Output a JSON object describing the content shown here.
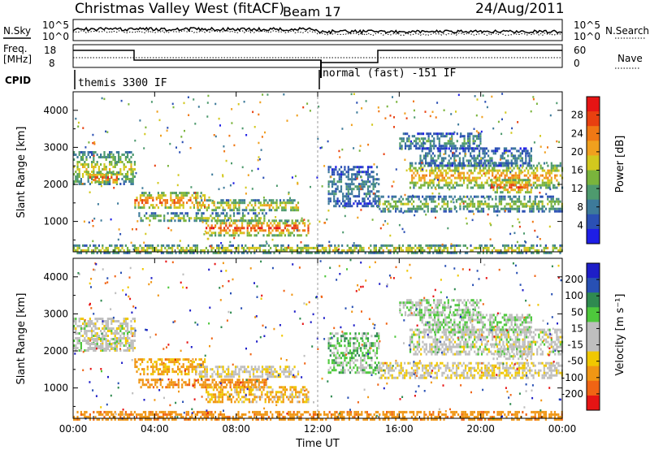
{
  "header": {
    "title": "Christmas Valley West (fitACF)",
    "beam": "Beam 17",
    "date": "24/Aug/2011"
  },
  "noise_panel": {
    "left_label": "N.Sky",
    "right_label": "N.Search",
    "left_ticks": [
      "10^5",
      "10^0"
    ],
    "right_ticks": [
      "10^5",
      "10^0"
    ]
  },
  "freq_panel": {
    "left_label_line1": "Freq.",
    "left_label_line2": "[MHz]",
    "right_label": "Nave",
    "left_ticks": [
      "18",
      "8"
    ],
    "right_ticks": [
      "60",
      "0"
    ]
  },
  "cpid_panel": {
    "label": "CPID",
    "modes": [
      {
        "text": "themis 3300 IF",
        "start_hour": 0
      },
      {
        "text": "normal (fast) -151 IF",
        "start_hour": 12
      }
    ]
  },
  "power_panel": {
    "ylabel": "Slant Range [km]",
    "colorbar_label": "Power [dB]",
    "colorbar_ticks": [
      "28",
      "24",
      "20",
      "16",
      "12",
      "8",
      "4"
    ]
  },
  "velocity_panel": {
    "ylabel": "Slant Range [km]",
    "colorbar_label": "Velocity [m s⁻¹]",
    "colorbar_ticks": [
      "200",
      "100",
      "50",
      "15",
      "-15",
      "-50",
      "-100",
      "-200"
    ]
  },
  "xaxis": {
    "label": "Time UT",
    "ticks": [
      "00:00",
      "04:00",
      "08:00",
      "12:00",
      "16:00",
      "20:00",
      "00:00"
    ]
  },
  "chart_data": {
    "type": "heatmap",
    "title": "Christmas Valley West (fitACF)",
    "xlabel": "Time UT",
    "ylabel": "Slant Range [km]",
    "x_range_hours": [
      0,
      24
    ],
    "y_range_km": [
      180,
      4500
    ],
    "y_ticks_km": [
      1000,
      2000,
      3000,
      4000
    ],
    "power_colorbar": {
      "colors": [
        "#1e1ee6",
        "#2b50b4",
        "#3d7a9a",
        "#4e9a6e",
        "#7ab43c",
        "#d2c81e",
        "#f0a01e",
        "#f07814",
        "#e84010",
        "#e61414"
      ]
    },
    "velocity_colorbar": {
      "colors": [
        "#1e1ec8",
        "#2850b4",
        "#2f8a50",
        "#4ec83c",
        "#bebebe",
        "#bebebe",
        "#f0c800",
        "#f09614",
        "#f06414",
        "#e61414"
      ]
    },
    "echo_bands": [
      {
        "t0": 0.0,
        "t1": 3.0,
        "r0": 2000,
        "r1": 2900,
        "power": 18,
        "velocity": 0
      },
      {
        "t0": 0.7,
        "t1": 2.2,
        "r0": 2050,
        "r1": 2350,
        "power": 28,
        "velocity": 0
      },
      {
        "t0": 3.0,
        "t1": 6.5,
        "r0": 1350,
        "r1": 1800,
        "power": 26,
        "velocity": -40
      },
      {
        "t0": 3.2,
        "t1": 9.5,
        "r0": 1000,
        "r1": 1250,
        "power": 16,
        "velocity": -60
      },
      {
        "t0": 6.5,
        "t1": 11.5,
        "r0": 650,
        "r1": 1050,
        "power": 28,
        "velocity": -30
      },
      {
        "t0": 6.0,
        "t1": 11.0,
        "r0": 1300,
        "r1": 1600,
        "power": 20,
        "velocity": -10
      },
      {
        "t0": 0.0,
        "t1": 24.0,
        "r0": 180,
        "r1": 380,
        "power": 20,
        "velocity": -60
      },
      {
        "t0": 12.5,
        "t1": 15.0,
        "r0": 1400,
        "r1": 2500,
        "power": 10,
        "velocity": 20
      },
      {
        "t0": 15.0,
        "t1": 24.0,
        "r0": 1300,
        "r1": 1700,
        "power": 16,
        "velocity": -10
      },
      {
        "t0": 16.5,
        "t1": 24.0,
        "r0": 1900,
        "r1": 2600,
        "power": 22,
        "velocity": 0
      },
      {
        "t0": 20.5,
        "t1": 22.5,
        "r0": 1800,
        "r1": 2150,
        "power": 28,
        "velocity": 0
      },
      {
        "t0": 16.0,
        "t1": 20.0,
        "r0": 3000,
        "r1": 3400,
        "power": 12,
        "velocity": 10
      },
      {
        "t0": 17.0,
        "t1": 22.5,
        "r0": 2500,
        "r1": 3000,
        "power": 10,
        "velocity": 10
      }
    ]
  }
}
